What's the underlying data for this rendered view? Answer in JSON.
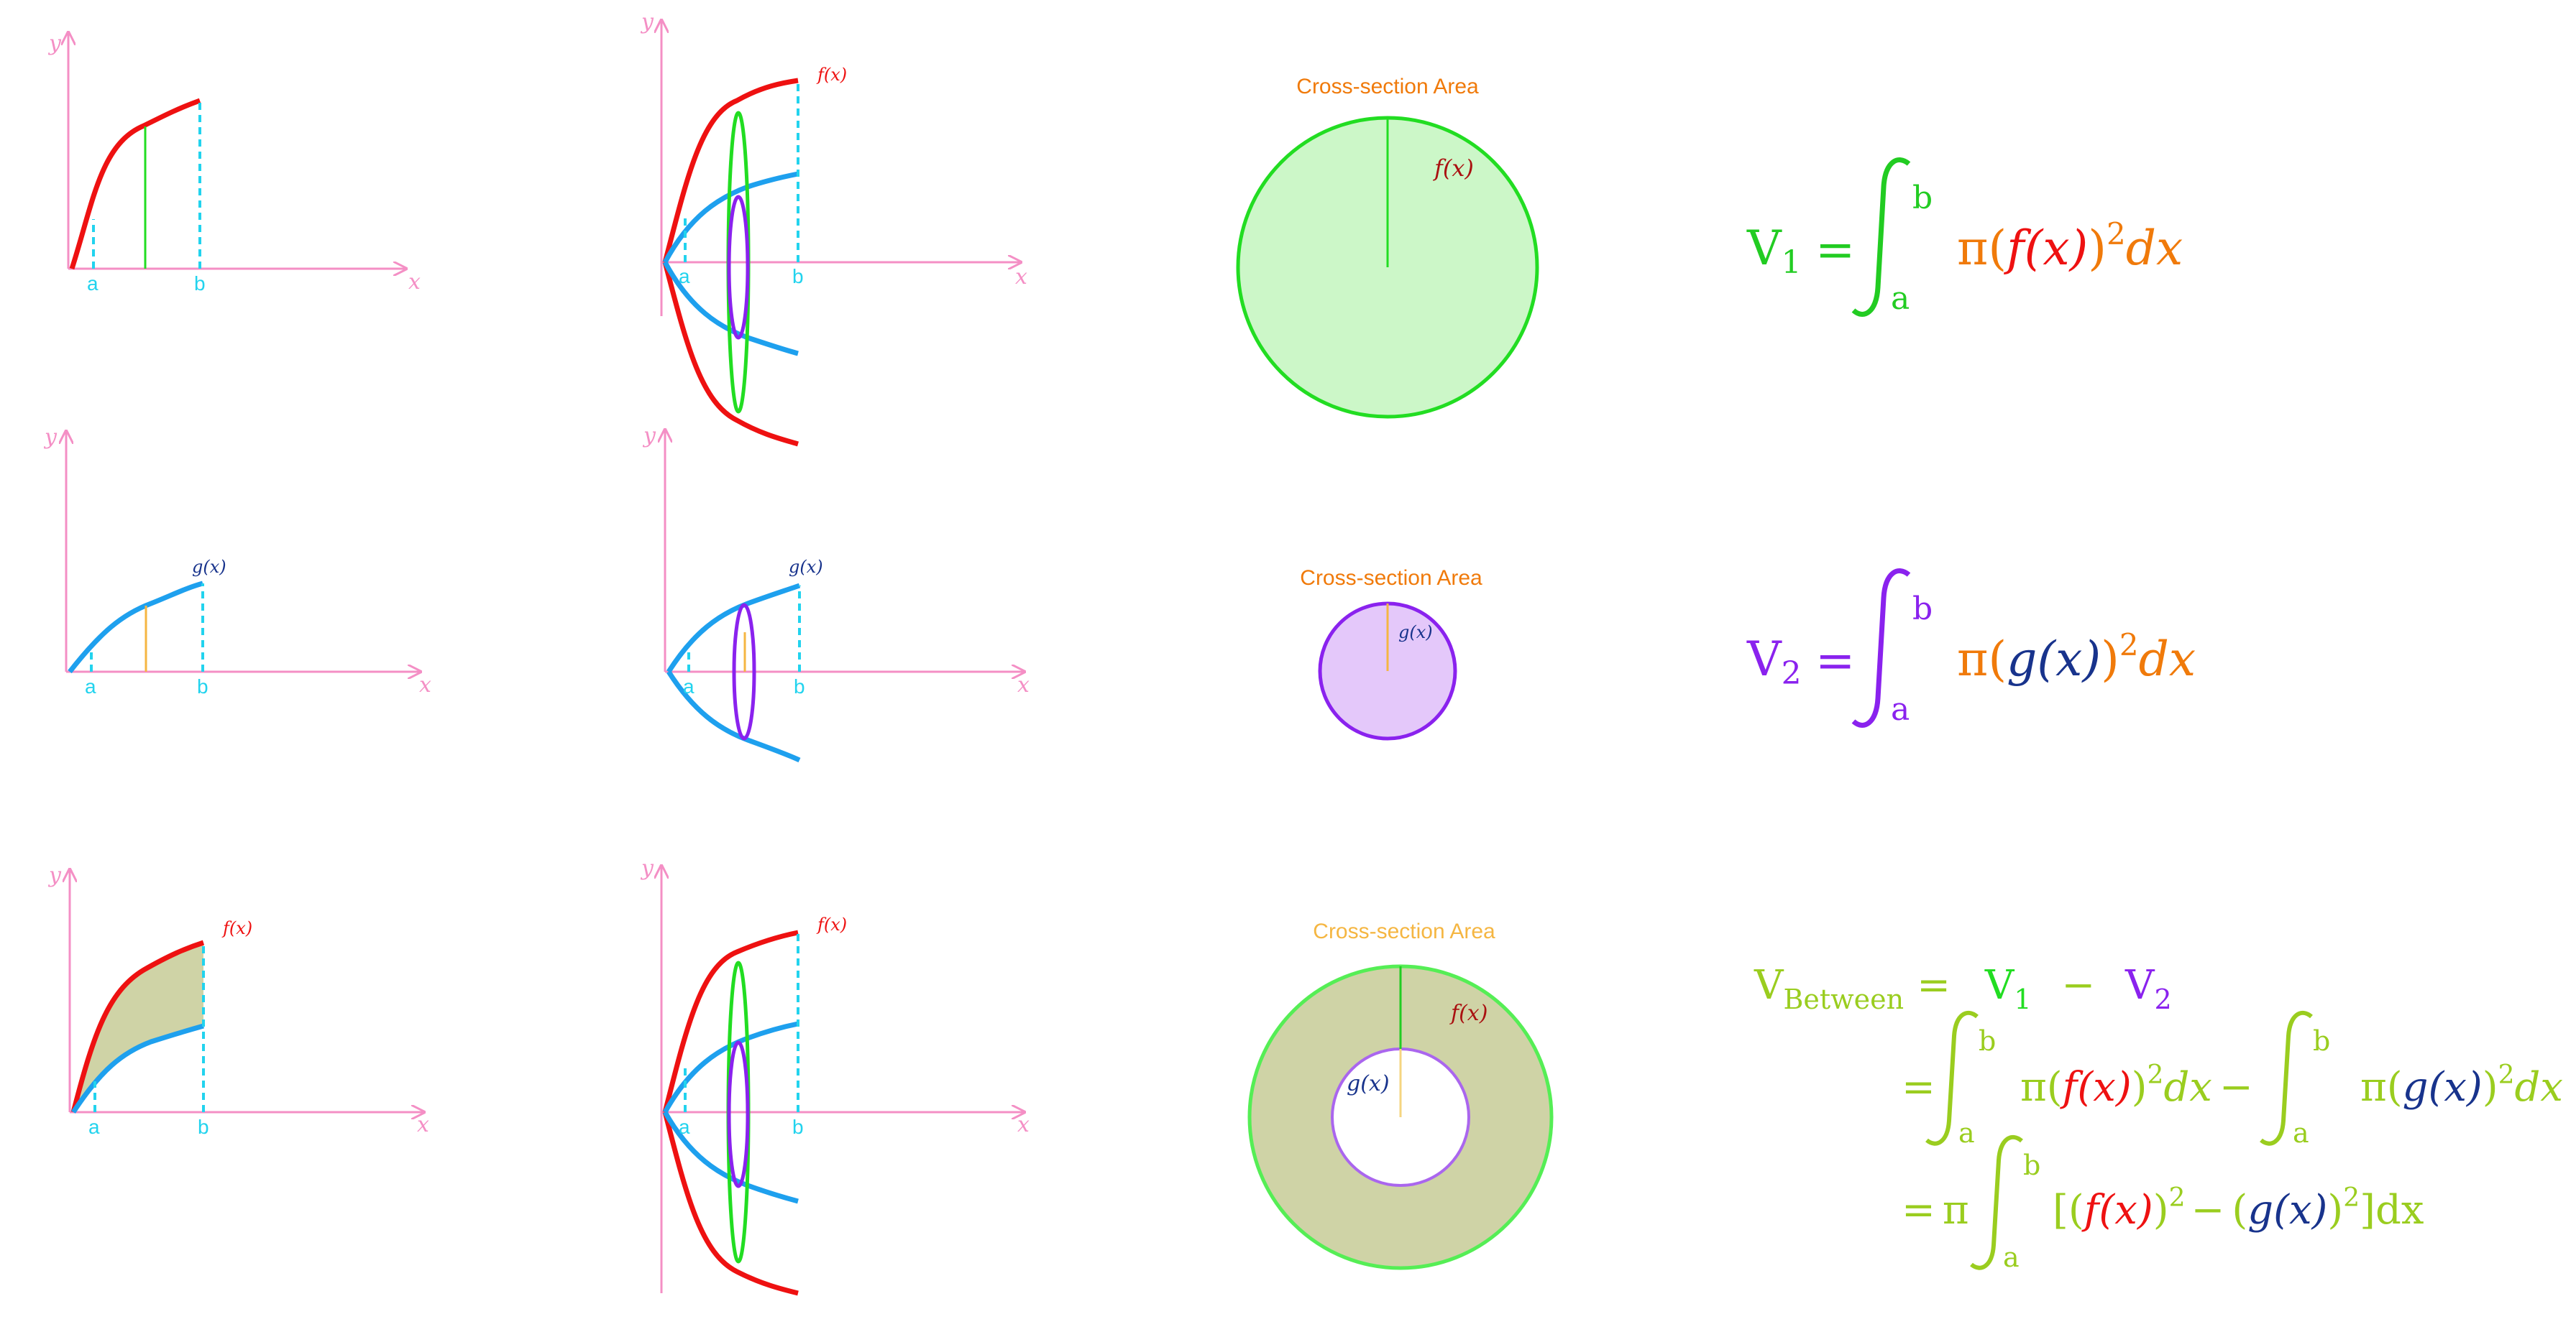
{
  "colors": {
    "axis": "#f48fc5",
    "f_curve": "#ee1111",
    "g_curve": "#1ea0ee",
    "ab_marks": "#22d3ee",
    "disk_green": "#22dd22",
    "disk_green_fill": "#ccf7c8",
    "disk_purple": "#8a22ee",
    "disk_purple_fill": "#e4c8fa",
    "washer_fill": "#cfd3a6",
    "orange": "#f07a0a",
    "lime": "#9acd1f",
    "navy": "#18338c"
  },
  "graphs": {
    "y": "y",
    "x": "x",
    "a": "a",
    "b": "b",
    "f": "f(x)",
    "g": "g(x)"
  },
  "cross_sections": {
    "title_1": "Cross-section Area",
    "title_2": "Cross-section Area",
    "title_3": "Cross-section Area",
    "f_label": "f(x)",
    "g_label": "g(x)"
  },
  "formulas": {
    "row1": {
      "lhs": "V",
      "sub": "1",
      "eq": "=",
      "upper": "b",
      "lower": "a",
      "pi": "π(",
      "fn": "f(x)",
      "close": ")",
      "exp": "2",
      "dx": "dx"
    },
    "row2": {
      "lhs": "V",
      "sub": "2",
      "eq": "=",
      "upper": "b",
      "lower": "a",
      "pi": "π(",
      "fn": "g(x)",
      "close": ")",
      "exp": "2",
      "dx": "dx"
    },
    "row3": {
      "lhs": "V",
      "sub": "Between",
      "eq": "=",
      "v1": "V",
      "v1_sub": "1",
      "minus": "−",
      "v2": "V",
      "v2_sub": "2",
      "upper": "b",
      "lower": "a",
      "pi": "π(",
      "f": "f(x)",
      "g": "g(x)",
      "close": ")",
      "exp": "2",
      "dx": "dx",
      "pi_solo": "π",
      "bracket_open": "[(",
      "bracket_close": "]dx",
      "x_var": "x"
    }
  }
}
